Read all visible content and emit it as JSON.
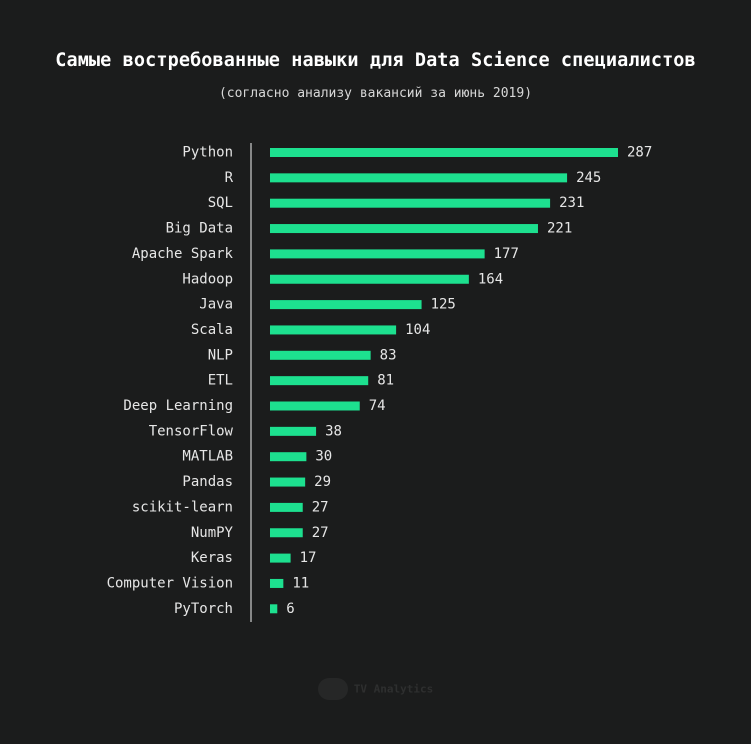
{
  "chart_data": {
    "type": "bar",
    "orientation": "horizontal",
    "title": "Самые востребованные навыки для Data Science специалистов",
    "subtitle": "(согласно анализу вакансий за июнь 2019)",
    "categories": [
      "Python",
      "R",
      "SQL",
      "Big Data",
      "Apache Spark",
      "Hadoop",
      "Java",
      "Scala",
      "NLP",
      "ETL",
      "Deep Learning",
      "TensorFlow",
      "MATLAB",
      "Pandas",
      "scikit-learn",
      "NumPY",
      "Keras",
      "Computer Vision",
      "PyTorch"
    ],
    "values": [
      287,
      245,
      231,
      221,
      177,
      164,
      125,
      104,
      83,
      81,
      74,
      38,
      30,
      29,
      27,
      27,
      17,
      11,
      6
    ],
    "xlim": [
      0,
      287
    ],
    "bar_color": "#1de08f",
    "axis_color": "#cfcfcf",
    "grid": false,
    "legend": "none"
  },
  "watermark": {
    "text": "TV Analytics"
  }
}
